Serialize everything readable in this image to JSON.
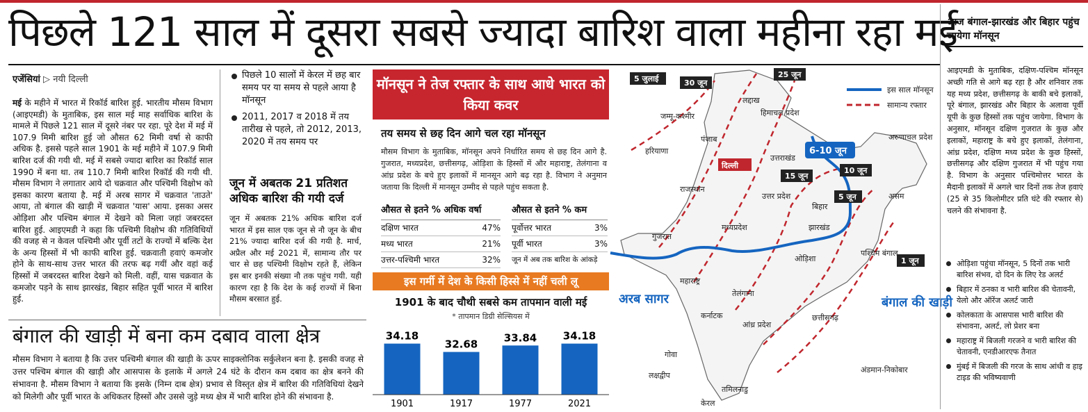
{
  "headline": "पिछले 121 साल में दूसरा सबसे ज्यादा बारिश वाला महीना रहा मई",
  "byline": {
    "agency": "एजेंसियां",
    "place": "नयी दिल्ली"
  },
  "article": {
    "lead": "मई",
    "body": " के महीने में भारत में रिकॉर्ड बारिश हुई. भारतीय मौसम विभाग (आइएमडी) के मुताबिक, इस साल मई माह सर्वाधिक बारिश के मामले में पिछले 121 साल में दूसरे नंबर पर रहा. पूरे देश में मई में 107.9 मिमी बारिश हुई जो औसत 62 मिमी वर्षा से काफी अधिक है. इससे पहले साल 1901 के मई महीने में 107.9 मिमी बारिश दर्ज की गयी थी. मई में सबसे ज्यादा बारिश का रिकॉर्ड साल 1990 में बना था. तब 110.7 मिमी बारिश रिकॉर्ड की गयी थी. मौसम विभाग ने लगातार आये दो चक्रवात और पश्चिमी विक्षोभ को इसका कारण बताया है. मई में अरब सागर में चक्रवात 'ताउते' आया, तो बंगाल की खाड़ी में चक्रवात 'यास' आया. इसका असर ओड़िशा और पश्चिम बंगाल में देखने को मिला जहां जबरदस्त बारिश हुई. आइएमडी ने कहा कि पश्चिमी विक्षोभ की गतिविधियों की वजह से न केवल पश्चिमी और पूर्वी तटों के राज्यों में बल्कि देश के अन्य हिस्सों में भी काफी बारिश हुई. चक्रवाती हवाएं कमजोर होने के साथ-साथ उत्तर भारत की तरफ बढ़ गयीं और वहां कई हिस्सों में जबरदस्त बारिश देखने को मिली. वहीं, यास चक्रवात के कमजोर पड़ने के साथ झारखंड, बिहार सहित पूर्वी भारत में बारिश हुई."
  },
  "mid_bullets": [
    "पिछले 10 सालों में केरल में छह बार समय पर या समय से पहले आया है मॉनसून",
    "2011, 2017 व 2018 में तय तारीख से पहले, तो 2012, 2013, 2020 में तय समय पर"
  ],
  "subhead1": "जून में अबतक 21 प्रतिशत अधिक बारिश की गयी दर्ज",
  "subtext1": "जून में अबतक 21% अधिक बारिश दर्ज भारत में इस साल एक जून से नौ जून के बीच 21% ज्यादा बारिश दर्ज की गयी है. मार्च, अप्रैल और मई 2021 में, सामान्य तौर पर चार से छह पश्चिमी विक्षोभ रहते हैं, लेकिन इस बार इनकी संख्या नौ तक पहुंच गयी. यही कारण रहा है कि देश के कई राज्यों में बिना मौसम बरसात हुई.",
  "subhead2": "बंगाल की खाड़ी में बना कम दबाव वाला क्षेत्र",
  "subtext2": "मौसम विभाग ने बताया है कि उत्तर पश्चिमी बंगाल की खाड़ी के ऊपर साइक्लोनिक सर्कुलेशन बना है. इसकी वजह से उत्तर पश्चिम बंगाल की खाड़ी और आसपास के इलाके में अगले 24 घंटे के दौरान कम दबाव का क्षेत्र बनने की संभावना है. मौसम विभाग ने बताया कि इसके (निम्न दाब क्षेत्र) प्रभाव से विस्तृत क्षेत्र में बारिश की गतिविधियां देखने को मिलेगी और पूर्वी भारत के अधिकतर हिस्सों और उससे जुड़े मध्य क्षेत्र में भारी बारिश होने की संभावना है.",
  "center": {
    "banner": "मॉनसून ने तेज रफ्तार के साथ आधे भारत को किया कवर",
    "subhead": "तय समय से छह दिन आगे चल रहा मॉनसून",
    "text": "मौसम विभाग के मुताबिक, मॉनसून अपने निर्धारित समय से छह दिन आगे है. गुजरात, मध्यप्रदेश, छत्तीसगढ़, ओड़िशा के हिस्सों में और महाराष्ट्र, तेलंगाना व आंध्र प्रदेश के बचे हुए इलाकों में मानसून आगे बढ़ रहा है. विभाग ने अनुमान जताया कि दिल्ली में मानसून उम्मीद से पहले पहुंच सकता है.",
    "more_rain": {
      "title": "औसत से इतने % अधिक वर्षा",
      "rows": [
        {
          "region": "दक्षिण भारत",
          "value": "47%"
        },
        {
          "region": "मध्य भारत",
          "value": "21%"
        },
        {
          "region": "उत्तर-पश्चिमी भारत",
          "value": "32%"
        }
      ]
    },
    "less_rain": {
      "title": "औसत से इतने % कम",
      "rows": [
        {
          "region": "पूर्वोत्तर भारत",
          "value": "3%"
        },
        {
          "region": "पूर्वी भारत",
          "value": "3%"
        }
      ],
      "note": "जून में अब तक बारिश के आंकड़े"
    },
    "orange_banner": "इस गर्मी में देश के किसी हिस्से में नहीं चली लू"
  },
  "chart_data": {
    "type": "bar",
    "title": "1901 के बाद चौथी सबसे कम तापमान वाली मई",
    "note": "* तापमान डिग्री सेल्सियस में",
    "categories": [
      "1901",
      "1917",
      "1977",
      "2021"
    ],
    "values": [
      34.18,
      32.68,
      33.84,
      34.18
    ],
    "value_labels": [
      "34.18",
      "32.68",
      "33.84",
      "34.18"
    ],
    "color": "#1565c0"
  },
  "map": {
    "legend": {
      "this_year": "इस साल मॉनसून",
      "normal": "सामान्य रफ्तार"
    },
    "dates": [
      "5 जुलाई",
      "30 जून",
      "25 जून",
      "6-10 जून",
      "15 जून",
      "10 जून",
      "5 जून",
      "1 जून"
    ],
    "states": [
      "लद्दाख",
      "जम्मू-कश्मीर",
      "हिमाचल प्रदेश",
      "पंजाब",
      "हरियाणा",
      "उत्तराखंड",
      "अरुणाचल प्रदेश",
      "दिल्ली",
      "राजस्थान",
      "उत्तर प्रदेश",
      "असम",
      "बिहार",
      "झारखंड",
      "मध्यप्रदेश",
      "गुजरात",
      "पश्चिम बंगाल",
      "ओड़िशा",
      "छत्तीसगढ़",
      "महाराष्ट्र",
      "तेलंगाना",
      "कर्नाटक",
      "आंध्र प्रदेश",
      "गोवा",
      "लक्षद्वीप",
      "तमिलनाडु",
      "केरल",
      "अंडमान-निकोबार"
    ],
    "seas": {
      "arabian": "अरब सागर",
      "bengal": "बंगाल की खाड़ी"
    },
    "colors": {
      "monsoon": "#1565c0",
      "normal": "#c0262d"
    }
  },
  "right": {
    "head": "आज बंगाल-झारखंड और बिहार पहुंच जायेगा मॉनसून",
    "text": "आइएमडी के मुताबिक, दक्षिण-पश्चिम मॉनसून अच्छी गति से आगे बढ़ रहा है और शनिवार तक यह मध्य प्रदेश, छत्तीसगढ़ के बाकी बचे इलाकों, पूरे बंगाल, झारखंड और बिहार के अलावा पूर्वी यूपी के कुछ हिस्सों तक पहुंच जायेगा. विभाग के अनुसार, मॉनसून दक्षिण गुजरात के कुछ और इलाकों, महाराष्ट्र के बचे हुए इलाकों, तेलंगाना, आंध्र प्रदेश, दक्षिण मध्य प्रदेश के कुछ हिस्सों, छत्तीसगढ़ और दक्षिण गुजरात में भी पहुंच गया है. विभाग के अनुसार पश्चिमोत्तर भारत के मैदानी इलाकों में अगले चार दिनों तक तेज हवाएं (25 से 35 किलोमीटर प्रति घंटे की रफ्तार से) चलने की संभावना है.",
    "bullets": [
      "ओड़िशा पहुंचा मॉनसून, 5 दिनों तक भारी बारिश संभव, दो दिन के लिए रेड अलर्ट",
      "बिहार में ठनका व भारी बारिश की चेतावनी, येलो और ऑरेंज अलर्ट जारी",
      "कोलकाता के आसपास भारी बारिश की संभावना, अलर्ट, लो प्रेशर बना",
      "महाराष्ट्र में बिजली गरजने व भारी बारिश की चेतावनी, एनडीआरएफ तैनात",
      "मुंबई में बिजली की गरज के साथ आंधी व हाइ टाइड की भविष्यवाणी"
    ]
  }
}
